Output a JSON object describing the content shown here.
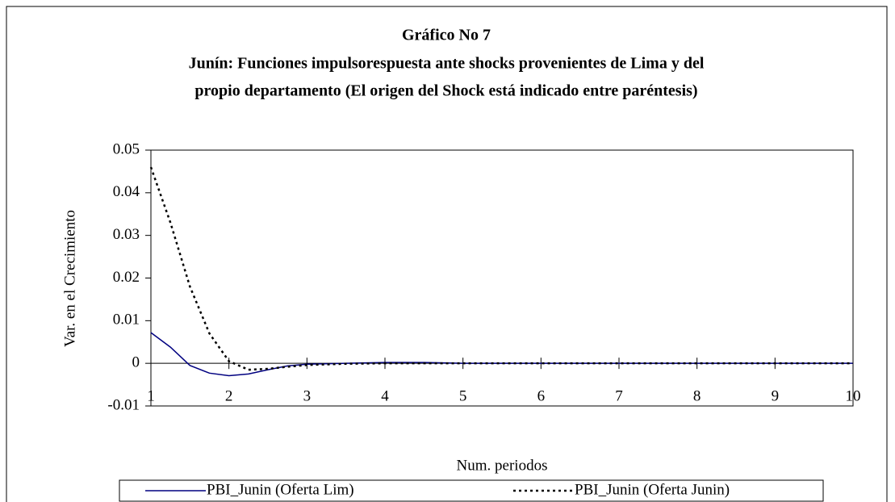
{
  "chart_data": {
    "type": "line",
    "title": "Gráfico No 7",
    "subtitle": [
      "Junín: Funciones impulsorespuesta ante shocks  provenientes de Lima y del",
      "propio departamento (El origen del Shock está indicado entre paréntesis)"
    ],
    "x_label": "Num. periodos",
    "y_label": "Var. en el Crecimiento",
    "x": [
      1,
      1.25,
      1.5,
      1.75,
      2,
      2.25,
      2.5,
      2.75,
      3,
      3.5,
      4,
      4.5,
      5,
      6,
      7,
      8,
      9,
      10
    ],
    "series": [
      {
        "name": "PBI_Junin (Oferta Lim)",
        "color": "#000080",
        "style": "solid",
        "values": [
          0.0072,
          0.0038,
          -0.0005,
          -0.0023,
          -0.0029,
          -0.0025,
          -0.0015,
          -0.0006,
          -0.0002,
          0,
          0.0002,
          0.0002,
          0,
          0,
          0,
          0,
          0,
          0
        ]
      },
      {
        "name": "PBI_Junin (Oferta Junin)",
        "color": "#000000",
        "style": "dotted",
        "values": [
          0.046,
          0.033,
          0.018,
          0.007,
          0.0005,
          -0.0015,
          -0.0013,
          -0.0008,
          -0.0004,
          -0.0001,
          0,
          0,
          0,
          0,
          0,
          0,
          0,
          0
        ]
      }
    ],
    "xlim": [
      1,
      10
    ],
    "xticks": [
      1,
      2,
      3,
      4,
      5,
      6,
      7,
      8,
      9,
      10
    ],
    "ylim": [
      -0.01,
      0.05
    ],
    "yticks": [
      -0.01,
      0,
      0.01,
      0.02,
      0.03,
      0.04,
      0.05
    ],
    "grid": false
  }
}
